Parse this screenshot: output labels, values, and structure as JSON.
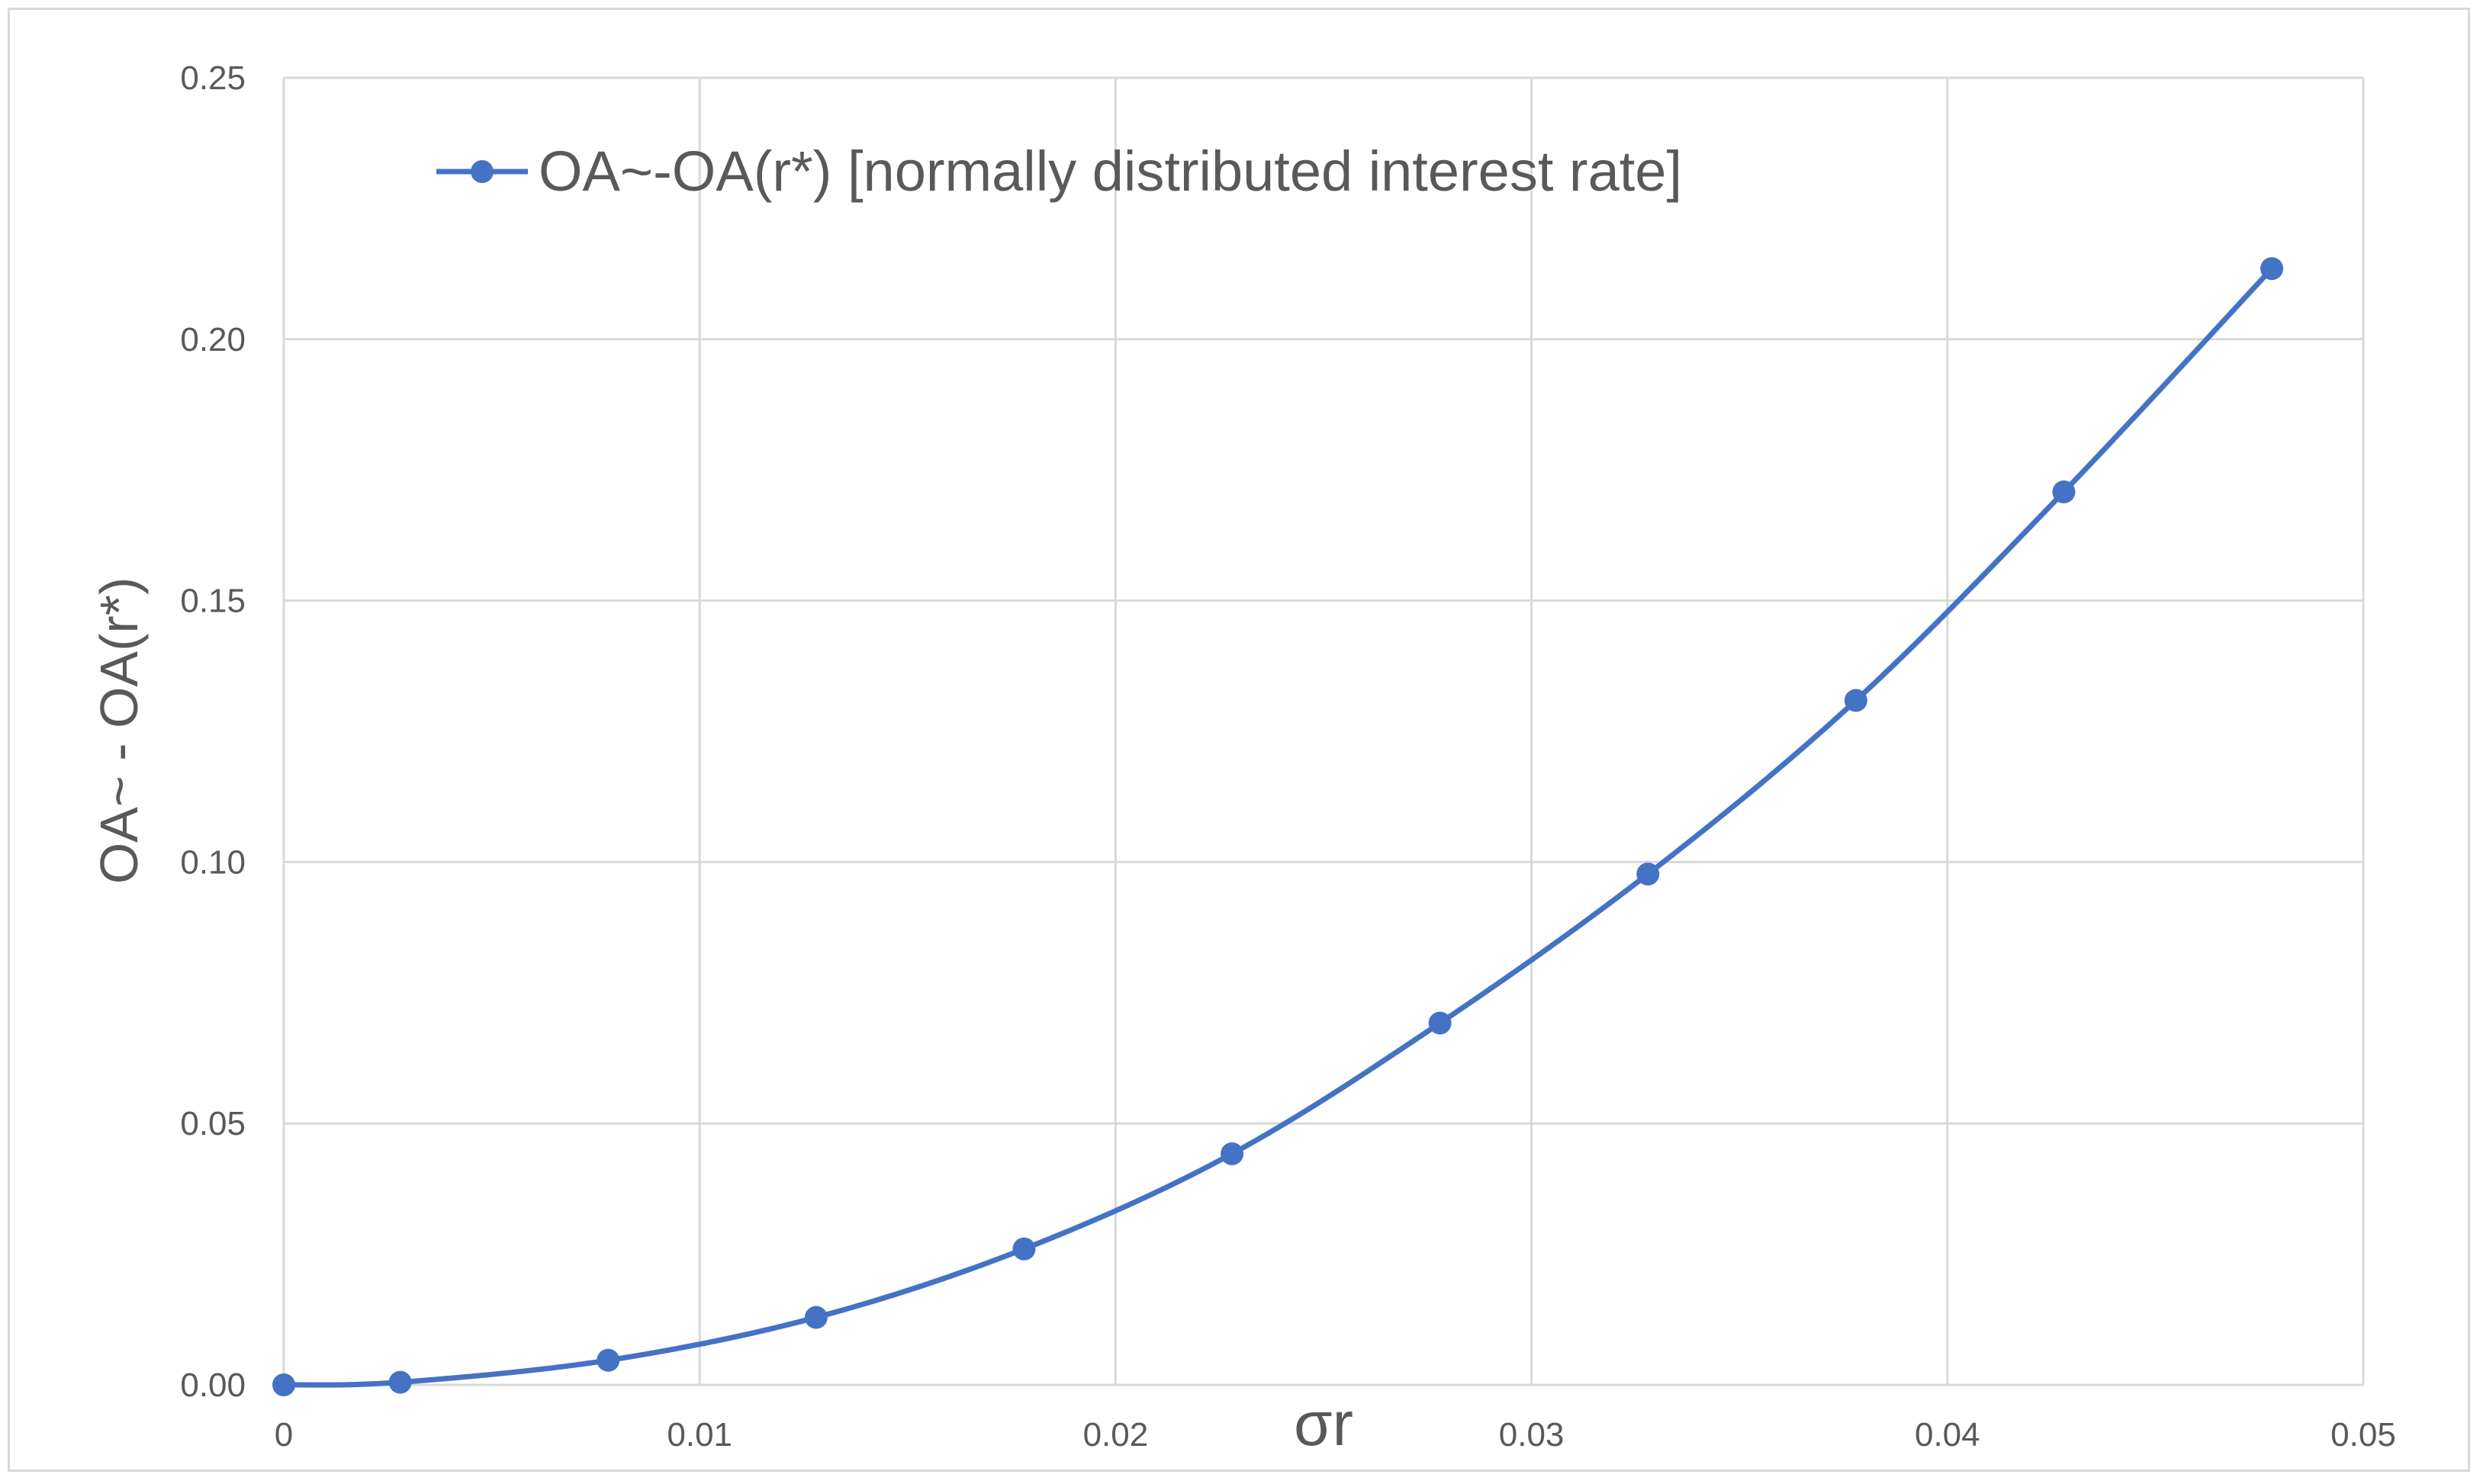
{
  "chart_data": {
    "type": "line",
    "title": "",
    "xlabel": "σr",
    "ylabel": "OA~ - OA(r*)",
    "xlim": [
      0,
      0.05
    ],
    "ylim": [
      0,
      0.25
    ],
    "x_ticks": [
      0,
      0.01,
      0.02,
      0.03,
      0.04,
      0.05
    ],
    "x_tick_labels": [
      "0",
      "0.01",
      "0.02",
      "0.03",
      "0.04",
      "0.05"
    ],
    "y_ticks": [
      0,
      0.05,
      0.1,
      0.15,
      0.2,
      0.25
    ],
    "y_tick_labels": [
      "0.00",
      "0.05",
      "0.10",
      "0.15",
      "0.20",
      "0.25"
    ],
    "grid": true,
    "legend_position": "top-left",
    "smooth": true,
    "markers": true,
    "series": [
      {
        "name": "OA~-OA(r*) [normally distributed interest rate]",
        "color": "#4472c4",
        "x": [
          0,
          0.0028,
          0.0078,
          0.0128,
          0.0178,
          0.0228,
          0.0278,
          0.0328,
          0.0378,
          0.0428,
          0.0478
        ],
        "y": [
          0,
          0.0005,
          0.0047,
          0.0129,
          0.026,
          0.0442,
          0.0692,
          0.0977,
          0.1309,
          0.1708,
          0.2135
        ]
      }
    ],
    "colors": {
      "grid": "#d9d9d9",
      "text": "#595959",
      "series": "#4472c4"
    }
  }
}
